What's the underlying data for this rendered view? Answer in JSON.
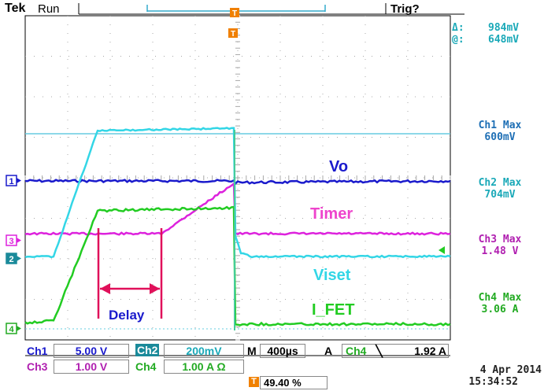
{
  "header": {
    "brand": "Tek",
    "run_state": "Run",
    "trigger_state": "Trig?"
  },
  "cursor_readout": {
    "delta_label": "Δ:",
    "delta_value": "984mV",
    "at_label": "@:",
    "at_value": "648mV"
  },
  "measurements": [
    {
      "label": "Ch1 Max",
      "value": "600mV",
      "color": "#1e6fb5"
    },
    {
      "label": "Ch2 Max",
      "value": "704mV",
      "color": "#1aa9b8"
    },
    {
      "label": "Ch3 Max",
      "value": "1.48 V",
      "color": "#b01fb0"
    },
    {
      "label": "Ch4 Max",
      "value": "3.06 A",
      "color": "#22aa22"
    }
  ],
  "waveform_labels": {
    "vo": "Vo",
    "timer": "Timer",
    "viset": "Viset",
    "i_fet": "I_FET",
    "delay": "Delay"
  },
  "channel_markers": {
    "ch1": "1",
    "ch2": "2",
    "ch3": "3",
    "ch4": "4"
  },
  "trigger_marker": "T",
  "colors": {
    "ch1": "#1a1acc",
    "ch2": "#33d6e6",
    "ch3": "#dd22dd",
    "ch4": "#22cc22",
    "trigger": "#f08000",
    "delay_annotation": "#e0105a",
    "grid": "#9a9a9a"
  },
  "bottom": {
    "ch1_label": "Ch1",
    "ch1_scale": "5.00 V",
    "ch2_label": "Ch2",
    "ch2_scale": "200mV",
    "ch3_label": "Ch3",
    "ch3_scale": "1.00 V",
    "ch4_label": "Ch4",
    "ch4_scale": "1.00 A Ω",
    "m_label": "M",
    "timebase": "400µs",
    "a_label": "A",
    "trig_source": "Ch4",
    "trig_slope": "╲",
    "trig_level": "1.92 A",
    "trig_pos_marker": "T",
    "trig_pos": "49.40 %",
    "date": "4 Apr 2014",
    "time": "15:34:52"
  }
}
